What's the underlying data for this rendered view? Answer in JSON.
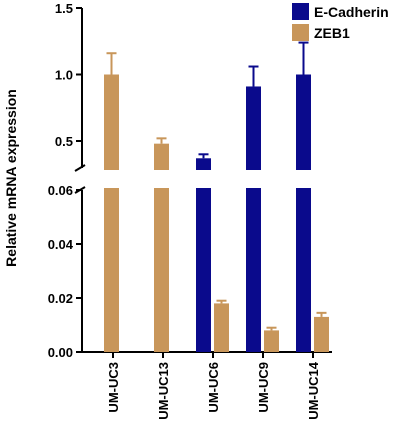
{
  "chart_data": {
    "type": "bar",
    "broken_axis": true,
    "ylabel": "Relative mRNA expression",
    "ylim_lower": [
      0,
      0.06
    ],
    "ylim_upper": [
      0.25,
      1.5
    ],
    "yticks_lower": [
      "0.00",
      "0.02",
      "0.04",
      "0.06"
    ],
    "yticks_upper": [
      "0.5",
      "1.0",
      "1.5"
    ],
    "categories": [
      "UM-UC3",
      "UM-UC13",
      "UM-UC6",
      "UM-UC9",
      "UM-UC14"
    ],
    "series": [
      {
        "name": "E-Cadherin",
        "color": "#0a0a8c",
        "values": [
          null,
          null,
          0.37,
          0.91,
          1.0
        ],
        "errors": [
          null,
          null,
          0.03,
          0.15,
          0.24
        ]
      },
      {
        "name": "ZEB1",
        "color": "#c8965a",
        "values": [
          1.0,
          0.48,
          0.018,
          0.008,
          0.013
        ],
        "errors": [
          0.16,
          0.04,
          0.001,
          0.001,
          0.0015
        ]
      }
    ],
    "legend_position": "top-right",
    "grid": false
  }
}
